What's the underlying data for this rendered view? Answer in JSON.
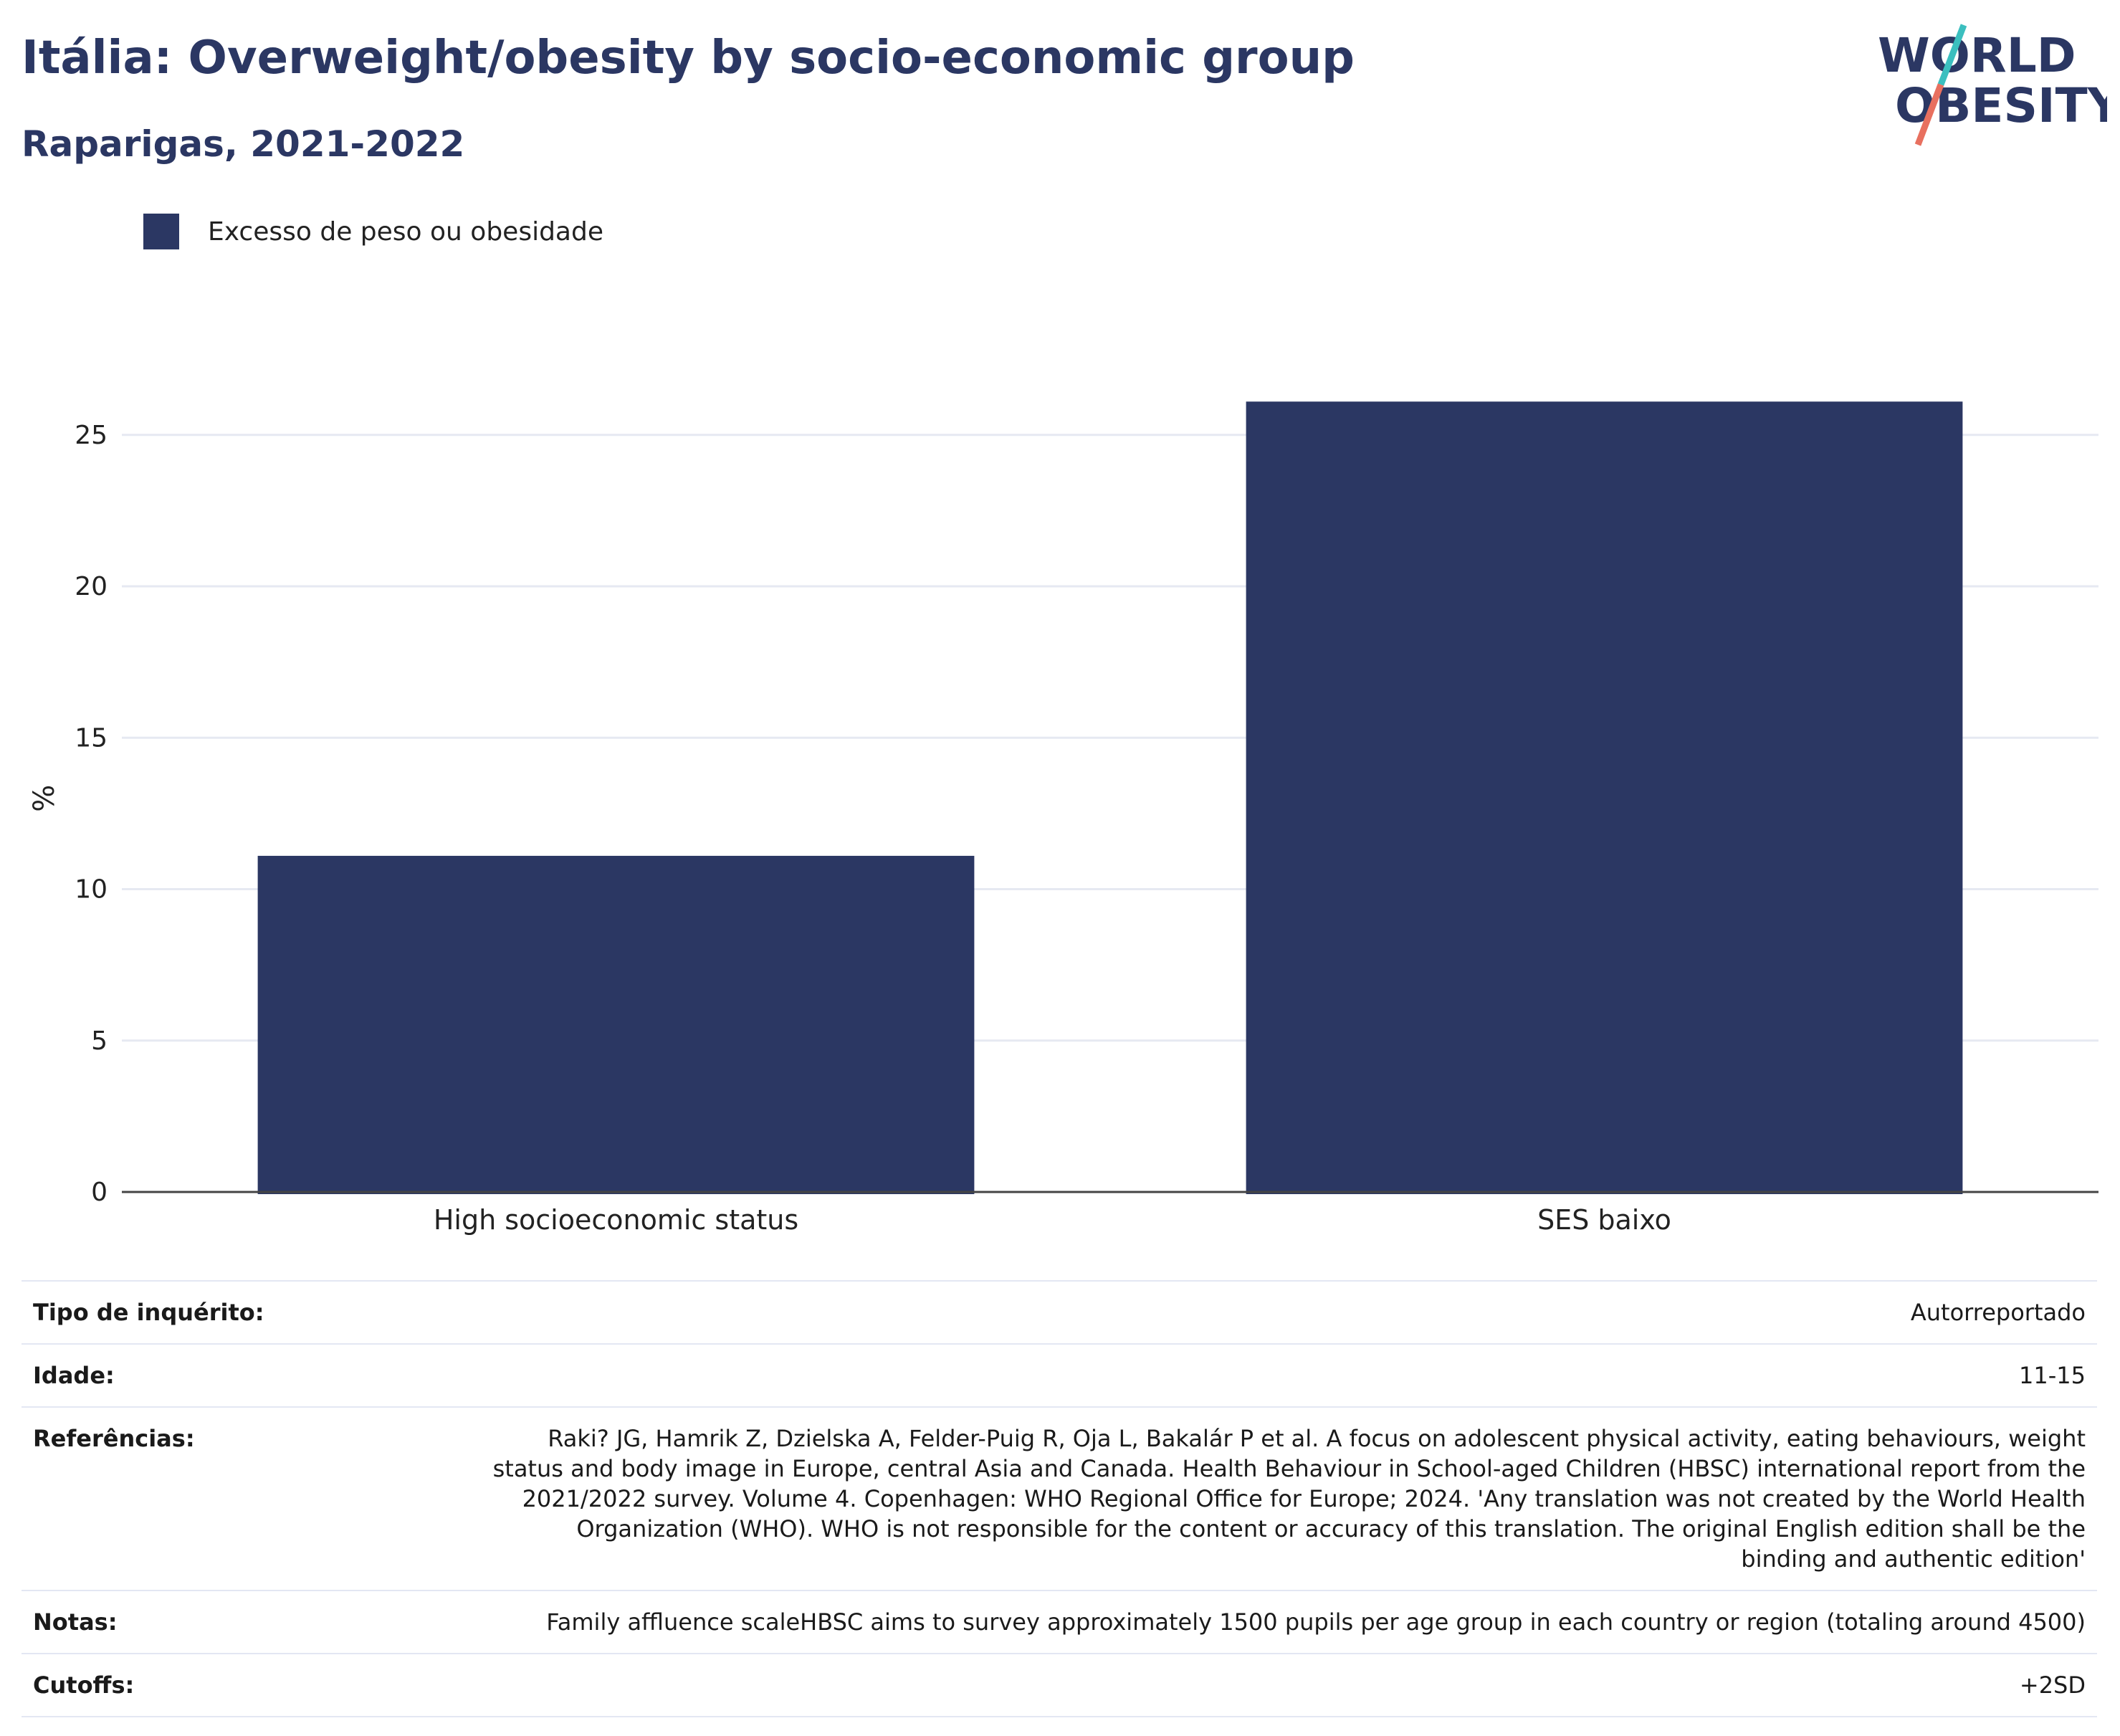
{
  "header": {
    "title": "Itália: Overweight/obesity by socio-economic group",
    "subtitle": "Raparigas, 2021-2022"
  },
  "logo": {
    "line1": "WORLD",
    "line2": "OBESITY"
  },
  "colors": {
    "bar": "#2b3763",
    "title": "#2b3763",
    "grid": "#e6e9f2",
    "logo_teal": "#3bbfbf",
    "logo_coral": "#e8705f"
  },
  "chart_data": {
    "type": "bar",
    "categories": [
      "High socioeconomic status",
      "SES baixo"
    ],
    "series": [
      {
        "name": "Excesso de peso ou obesidade",
        "values": [
          11.1,
          26.1
        ]
      }
    ],
    "ylabel": "%",
    "ylim": [
      0,
      28
    ],
    "yticks": [
      0,
      5,
      10,
      15,
      20,
      25
    ],
    "grid": true,
    "legend_position": "top-left"
  },
  "meta": [
    {
      "key": "Tipo de inquérito:",
      "value": "Autorreportado"
    },
    {
      "key": "Idade:",
      "value": "11-15"
    },
    {
      "key": "Referências:",
      "value": "Raki? JG, Hamrik Z, Dzielska A, Felder-Puig R, Oja L, Bakalár P et al. A focus on adolescent physical activity, eating behaviours, weight status and body image in Europe, central Asia and Canada. Health Behaviour in School-aged Children (HBSC) international report from the 2021/2022 survey. Volume 4. Copenhagen: WHO Regional Office for Europe; 2024. 'Any translation was not created by the World Health Organization (WHO). WHO is not responsible for the content or accuracy of this translation. The original English edition shall be the binding and authentic edition'"
    },
    {
      "key": "Notas:",
      "value": "Family affluence scaleHBSC aims to survey approximately 1500 pupils per age group in each country or region (totaling around 4500)"
    },
    {
      "key": "Cutoffs:",
      "value": "+2SD"
    }
  ]
}
